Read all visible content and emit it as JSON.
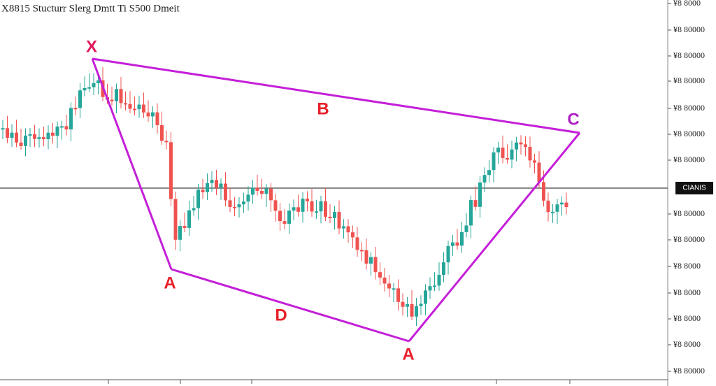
{
  "header": {
    "title": "X8815 Stucturr  Slerg Dmtt Ti S500 Dmeit"
  },
  "price_axis": {
    "labels": [
      "¥8 8000",
      "¥8 80000",
      "¥8 80000",
      "¥8 80000",
      "¥8 80000",
      "¥8 80000",
      "¥8 80000",
      "¥8 80000",
      "¥8 80000",
      "¥8 8000",
      "¥8 8000",
      "¥8 8000",
      "¥8 8000",
      "¥8 80000"
    ]
  },
  "current_price": "CIANIS",
  "pattern_labels": [
    "X",
    "B",
    "C",
    "A",
    "D",
    "A"
  ]
}
